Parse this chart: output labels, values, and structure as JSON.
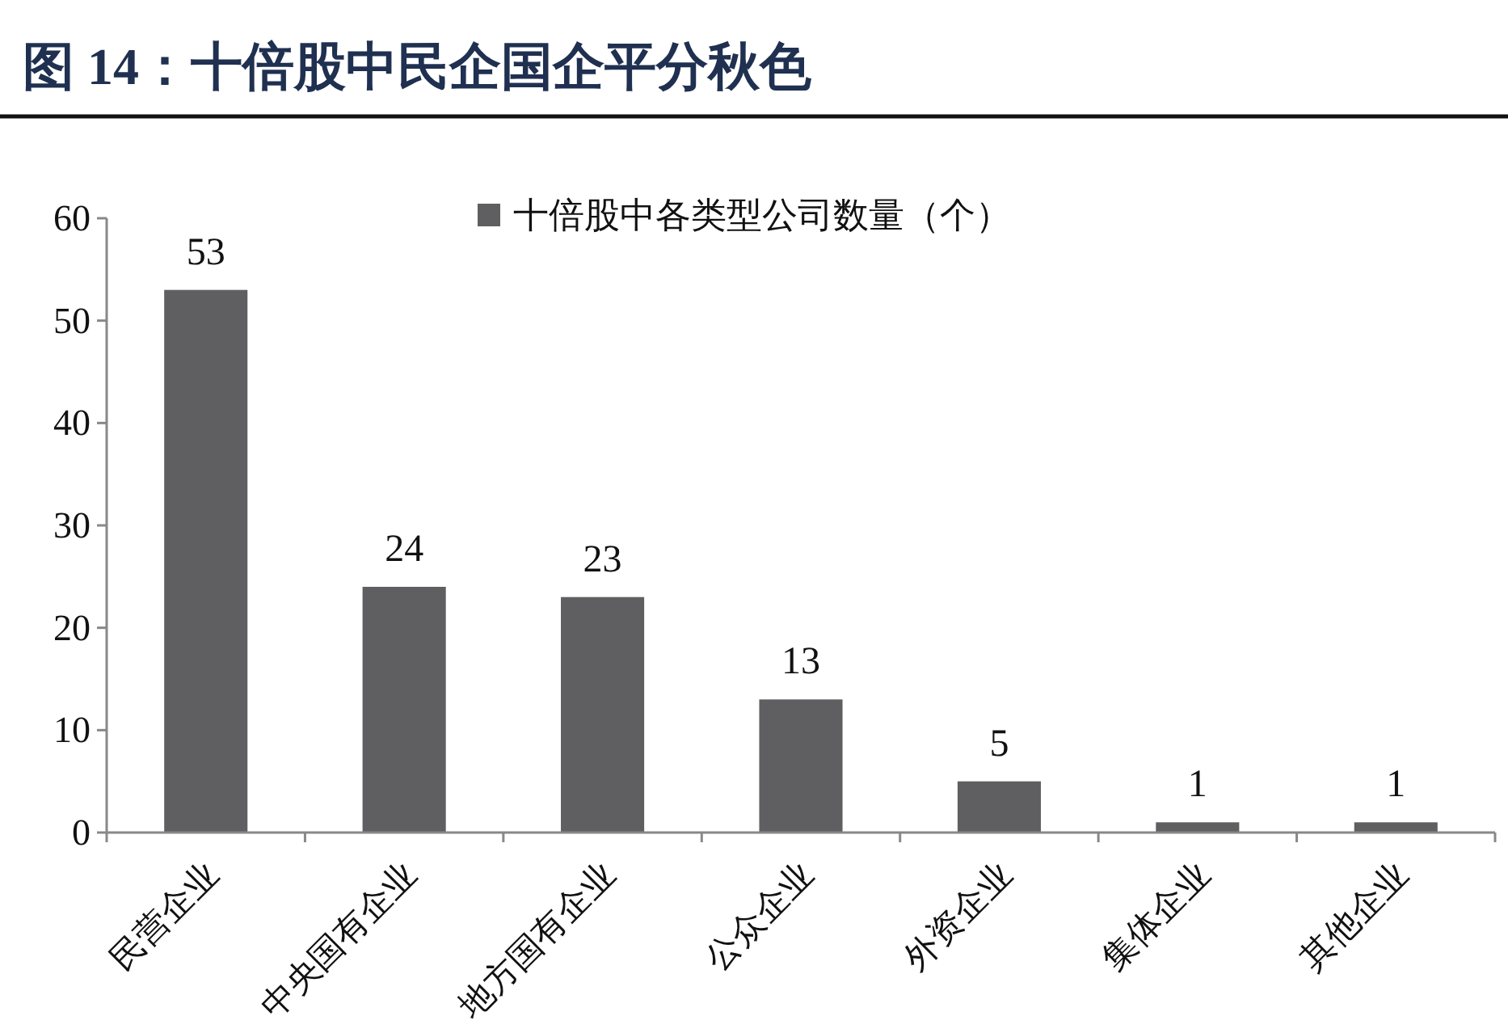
{
  "chart_data": {
    "type": "bar",
    "title": "图 14：十倍股中民企国企平分秋色",
    "categories": [
      "民营企业",
      "中央国有企业",
      "地方国有企业",
      "公众企业",
      "外资企业",
      "集体企业",
      "其他企业"
    ],
    "series": [
      {
        "name": "十倍股中各类型公司数量（个）",
        "color": "#5f5f61",
        "values": [
          53,
          24,
          23,
          13,
          5,
          1,
          1
        ]
      }
    ],
    "ylim": [
      0,
      60
    ],
    "yticks": [
      0,
      10,
      20,
      30,
      40,
      50,
      60
    ],
    "data_labels": true,
    "legend": "top"
  }
}
